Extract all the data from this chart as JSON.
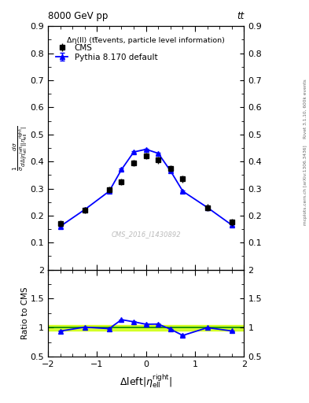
{
  "title_left": "8000 GeV pp",
  "title_right": "tt",
  "annotation": "Δη(ll) (tt̅events, particle level information)",
  "watermark": "CMS_2016_I1430892",
  "right_label": "Rivet 3.1.10, 600k events",
  "right_label2": "mcplots.cern.ch [arXiv:1306.3436]",
  "ylabel_ratio": "Ratio to CMS",
  "cms_x": [
    -1.75,
    -1.25,
    -0.75,
    -0.5,
    -0.25,
    0.0,
    0.25,
    0.5,
    0.75,
    1.25,
    1.75
  ],
  "cms_y": [
    0.17,
    0.22,
    0.295,
    0.325,
    0.395,
    0.42,
    0.405,
    0.375,
    0.335,
    0.23,
    0.175
  ],
  "cms_yerr": [
    0.012,
    0.012,
    0.012,
    0.012,
    0.012,
    0.012,
    0.012,
    0.012,
    0.012,
    0.012,
    0.012
  ],
  "pythia_x": [
    -1.75,
    -1.25,
    -0.75,
    -0.5,
    -0.25,
    0.0,
    0.25,
    0.5,
    0.75,
    1.25,
    1.75
  ],
  "pythia_y": [
    0.16,
    0.222,
    0.29,
    0.37,
    0.435,
    0.445,
    0.43,
    0.365,
    0.29,
    0.23,
    0.165
  ],
  "pythia_yerr": [
    0.003,
    0.003,
    0.003,
    0.003,
    0.003,
    0.003,
    0.003,
    0.003,
    0.003,
    0.003,
    0.003
  ],
  "ratio_x": [
    -1.75,
    -1.25,
    -0.75,
    -0.5,
    -0.25,
    0.0,
    0.25,
    0.5,
    0.75,
    1.25,
    1.75
  ],
  "ratio_y": [
    0.941,
    1.009,
    0.983,
    1.138,
    1.101,
    1.059,
    1.062,
    0.973,
    0.866,
    1.0,
    0.943
  ],
  "ratio_yerr": [
    0.008,
    0.008,
    0.008,
    0.008,
    0.008,
    0.008,
    0.008,
    0.008,
    0.008,
    0.008,
    0.008
  ],
  "ylim_main": [
    0.0,
    0.9
  ],
  "ylim_ratio": [
    0.5,
    2.0
  ],
  "xlim": [
    -2.0,
    2.0
  ],
  "cms_color": "#000000",
  "pythia_color": "#0000ff",
  "ratio_band_color": "#ccff00",
  "ratio_line_color": "#008800",
  "yticks_main": [
    0.1,
    0.2,
    0.3,
    0.4,
    0.5,
    0.6,
    0.7,
    0.8,
    0.9
  ],
  "yticks_ratio": [
    0.5,
    1.0,
    1.5,
    2.0
  ],
  "ytick_labels_ratio": [
    "0.5",
    "1",
    "1.5",
    "2"
  ]
}
